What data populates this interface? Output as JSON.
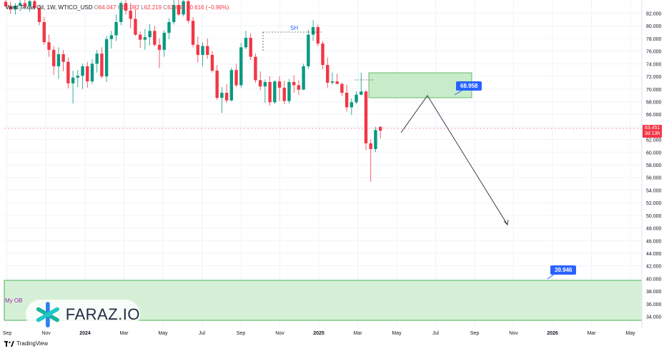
{
  "header": {
    "symbol": "West Texas Oil, 1W, WTICO_USD",
    "o_label": "O",
    "o_val": "64.047",
    "h_label": "H",
    "h_val": "64.092",
    "l_label": "L",
    "l_val": "62.219",
    "c_label": "C",
    "c_val": "63.431",
    "change": "−0.616 (−0.96%)"
  },
  "colors": {
    "up": "#089981",
    "down": "#f23645",
    "zone_fill": "#c8ecc9",
    "zone_border": "#4caf50",
    "badge": "#2962ff"
  },
  "current_price": {
    "value": "63.451",
    "countdown": "3d 13h"
  },
  "annotations": {
    "sh_label": "SH",
    "ob_label": "My OB",
    "target_upper": "68.958",
    "target_lower": "39.946"
  },
  "logo": {
    "text": "FARAZ.IO",
    "icon": "faraz-star-icon"
  },
  "footer": {
    "brand": "TradingView",
    "icon": "tradingview-logo-icon"
  },
  "chart_data": {
    "type": "candlestick",
    "ylim": [
      33,
      84
    ],
    "y_ticks": [
      "82.000",
      "80.000",
      "78.000",
      "76.000",
      "74.000",
      "72.000",
      "70.000",
      "68.000",
      "66.000",
      "64.000",
      "62.000",
      "60.000",
      "58.000",
      "56.000",
      "54.000",
      "52.000",
      "50.000",
      "48.000",
      "46.000",
      "44.000",
      "42.000",
      "40.000",
      "38.000",
      "36.000",
      "34.000"
    ],
    "x_ticks": [
      "Sep",
      "Nov",
      "2024",
      "Mar",
      "May",
      "Jul",
      "Sep",
      "Nov",
      "2025",
      "Mar",
      "May",
      "Jul",
      "Sep",
      "Nov",
      "2026",
      "Mar",
      "May"
    ],
    "candles": [
      [
        83.8,
        84.3,
        82.9,
        83.1
      ],
      [
        83.1,
        83.8,
        81.9,
        82.6
      ],
      [
        82.6,
        83.6,
        81.8,
        83.2
      ],
      [
        83.2,
        84.6,
        82.3,
        83.6
      ],
      [
        83.6,
        84.2,
        82.8,
        83.1
      ],
      [
        83.1,
        84.4,
        82.2,
        83.9
      ],
      [
        83.9,
        84.5,
        82.6,
        82.8
      ],
      [
        82.8,
        83.2,
        80.1,
        80.6
      ],
      [
        80.6,
        81.4,
        77.0,
        77.4
      ],
      [
        77.4,
        78.6,
        75.1,
        76.2
      ],
      [
        76.2,
        76.8,
        72.2,
        73.6
      ],
      [
        73.6,
        76.6,
        71.6,
        75.5
      ],
      [
        75.5,
        76.2,
        72.8,
        74.3
      ],
      [
        74.3,
        75.0,
        70.1,
        70.9
      ],
      [
        70.9,
        72.9,
        67.7,
        71.8
      ],
      [
        71.8,
        73.0,
        70.3,
        72.1
      ],
      [
        72.1,
        74.0,
        70.0,
        73.6
      ],
      [
        73.6,
        74.3,
        70.2,
        71.2
      ],
      [
        71.2,
        74.7,
        70.8,
        74.0
      ],
      [
        74.0,
        76.2,
        72.6,
        75.6
      ],
      [
        75.6,
        76.6,
        71.7,
        72.0
      ],
      [
        72.0,
        78.4,
        71.1,
        77.9
      ],
      [
        77.9,
        79.2,
        76.4,
        78.5
      ],
      [
        78.5,
        81.8,
        77.6,
        80.6
      ],
      [
        80.6,
        83.9,
        80.1,
        83.6
      ],
      [
        83.6,
        84.3,
        81.8,
        82.4
      ],
      [
        82.4,
        83.6,
        79.6,
        81.1
      ],
      [
        81.1,
        82.6,
        78.4,
        78.6
      ],
      [
        78.6,
        79.1,
        76.5,
        77.8
      ],
      [
        77.8,
        79.5,
        76.2,
        78.2
      ],
      [
        78.2,
        80.3,
        76.9,
        79.2
      ],
      [
        79.2,
        80.0,
        76.7,
        77.0
      ],
      [
        77.0,
        78.0,
        73.3,
        76.2
      ],
      [
        76.2,
        79.3,
        75.1,
        78.9
      ],
      [
        78.9,
        81.2,
        77.9,
        80.6
      ],
      [
        80.6,
        84.2,
        80.2,
        83.3
      ],
      [
        83.3,
        84.4,
        81.6,
        81.8
      ],
      [
        81.8,
        84.3,
        81.5,
        83.9
      ],
      [
        83.9,
        84.6,
        80.4,
        80.8
      ],
      [
        80.8,
        81.4,
        76.6,
        77.0
      ],
      [
        77.0,
        78.3,
        74.2,
        75.4
      ],
      [
        75.4,
        77.4,
        73.6,
        76.8
      ],
      [
        76.8,
        78.0,
        74.8,
        75.4
      ],
      [
        75.4,
        76.0,
        72.6,
        72.9
      ],
      [
        72.9,
        73.8,
        68.3,
        68.6
      ],
      [
        68.6,
        70.3,
        66.2,
        69.4
      ],
      [
        69.4,
        70.8,
        67.8,
        68.2
      ],
      [
        68.2,
        73.4,
        68.0,
        73.0
      ],
      [
        73.0,
        74.0,
        70.3,
        70.6
      ],
      [
        70.6,
        77.3,
        70.2,
        76.6
      ],
      [
        76.6,
        79.2,
        76.3,
        78.1
      ],
      [
        78.1,
        78.8,
        74.6,
        75.1
      ],
      [
        75.1,
        75.6,
        71.0,
        71.4
      ],
      [
        71.4,
        72.8,
        69.8,
        70.4
      ],
      [
        70.4,
        71.5,
        67.8,
        71.1
      ],
      [
        71.1,
        72.0,
        67.4,
        67.9
      ],
      [
        67.9,
        71.4,
        67.6,
        71.2
      ],
      [
        71.2,
        72.0,
        68.1,
        70.2
      ],
      [
        70.2,
        71.3,
        67.6,
        68.1
      ],
      [
        68.1,
        71.6,
        67.7,
        71.1
      ],
      [
        71.1,
        72.2,
        69.4,
        70.6
      ],
      [
        70.6,
        71.4,
        69.1,
        69.9
      ],
      [
        69.9,
        74.0,
        69.8,
        73.6
      ],
      [
        73.6,
        79.4,
        73.2,
        78.6
      ],
      [
        78.6,
        80.9,
        77.6,
        79.8
      ],
      [
        79.8,
        80.2,
        76.8,
        77.2
      ],
      [
        77.2,
        77.6,
        73.1,
        73.8
      ],
      [
        73.8,
        75.0,
        70.2,
        71.0
      ],
      [
        71.0,
        72.6,
        70.7,
        71.2
      ],
      [
        71.2,
        72.4,
        70.8,
        70.8
      ],
      [
        70.8,
        71.0,
        68.9,
        69.4
      ],
      [
        69.4,
        70.7,
        66.4,
        67.1
      ],
      [
        67.1,
        68.5,
        65.9,
        67.9
      ],
      [
        67.9,
        69.6,
        67.6,
        69.1
      ],
      [
        69.1,
        72.6,
        69.0,
        69.6
      ],
      [
        69.6,
        69.8,
        60.3,
        61.4
      ],
      [
        61.4,
        62.0,
        55.3,
        60.5
      ],
      [
        60.5,
        64.0,
        60.0,
        63.5
      ],
      [
        64.0,
        64.1,
        62.2,
        63.4
      ]
    ]
  }
}
